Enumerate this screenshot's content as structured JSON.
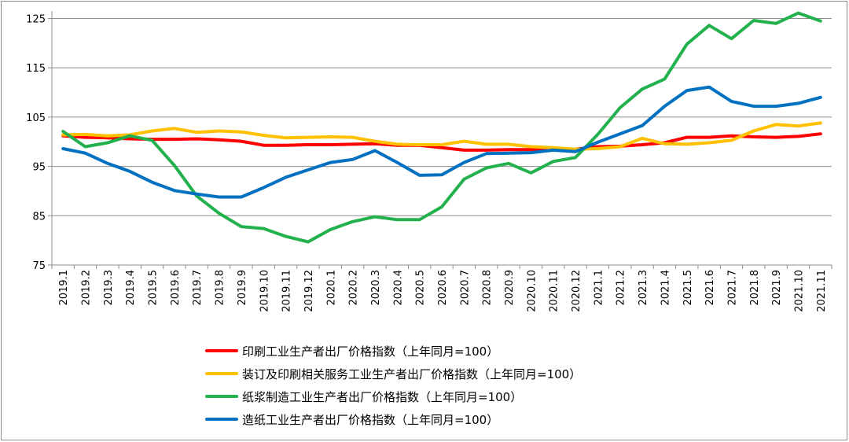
{
  "chart_data": {
    "type": "line",
    "title": "",
    "xlabel": "",
    "ylabel": "",
    "ylim": [
      75,
      126
    ],
    "yticks": [
      75,
      85,
      95,
      105,
      115,
      125
    ],
    "grid": true,
    "legend_position": "bottom",
    "categories": [
      "2019.1",
      "2019.2",
      "2019.3",
      "2019.4",
      "2019.5",
      "2019.6",
      "2019.7",
      "2019.8",
      "2019.9",
      "2019.10",
      "2019.11",
      "2019.12",
      "2020.1",
      "2020.2",
      "2020.3",
      "2020.4",
      "2020.5",
      "2020.6",
      "2020.7",
      "2020.8",
      "2020.9",
      "2020.10",
      "2020.11",
      "2020.12",
      "2021.1",
      "2021.2",
      "2021.3",
      "2021.4",
      "2021.5",
      "2021.6",
      "2021.7",
      "2021.8",
      "2021.9",
      "2021.10",
      "2021.11"
    ],
    "series": [
      {
        "name": "印刷工业生产者出厂价格指数（上年同月=100）",
        "color": "#ff0000",
        "values": [
          101.2,
          100.9,
          100.8,
          100.6,
          100.5,
          100.5,
          100.6,
          100.4,
          100.1,
          99.3,
          99.3,
          99.4,
          99.4,
          99.5,
          99.6,
          99.3,
          99.3,
          98.8,
          98.3,
          98.3,
          98.4,
          98.4,
          98.4,
          98.5,
          99.0,
          99.1,
          99.4,
          99.8,
          100.9,
          100.9,
          101.2,
          101.0,
          100.9,
          101.1,
          101.6
        ]
      },
      {
        "name": "装订及印刷相关服务工业生产者出厂价格指数（上年同月=100）",
        "color": "#ffc000",
        "values": [
          101.4,
          101.5,
          101.2,
          101.4,
          102.2,
          102.7,
          101.9,
          102.2,
          102.0,
          101.3,
          100.8,
          100.9,
          101.0,
          100.9,
          100.1,
          99.5,
          99.4,
          99.4,
          100.1,
          99.5,
          99.5,
          99.0,
          98.8,
          98.5,
          98.6,
          99.0,
          100.7,
          99.6,
          99.5,
          99.8,
          100.3,
          102.2,
          103.5,
          103.2,
          103.8
        ]
      },
      {
        "name": "纸浆制造工业生产者出厂价格指数（上年同月=100）",
        "color": "#22b14c",
        "values": [
          102.1,
          99.0,
          99.8,
          101.2,
          100.3,
          95.2,
          89.0,
          85.5,
          82.8,
          82.4,
          80.8,
          79.7,
          82.2,
          83.8,
          84.8,
          84.2,
          84.2,
          86.8,
          92.4,
          94.7,
          95.6,
          93.7,
          96.0,
          96.8,
          101.5,
          106.9,
          110.7,
          112.7,
          119.8,
          123.6,
          120.9,
          124.6,
          124.0,
          126.1,
          124.5
        ]
      },
      {
        "name": "造纸工业生产者出厂价格指数（上年同月=100）",
        "color": "#0070c0",
        "values": [
          98.6,
          97.7,
          95.6,
          94.0,
          91.8,
          90.1,
          89.4,
          88.8,
          88.8,
          90.7,
          92.8,
          94.3,
          95.8,
          96.4,
          98.2,
          95.8,
          93.2,
          93.3,
          95.8,
          97.6,
          97.7,
          97.8,
          98.3,
          98.0,
          99.9,
          101.6,
          103.3,
          107.2,
          110.4,
          111.1,
          108.2,
          107.2,
          107.2,
          107.8,
          109.0
        ]
      }
    ]
  }
}
